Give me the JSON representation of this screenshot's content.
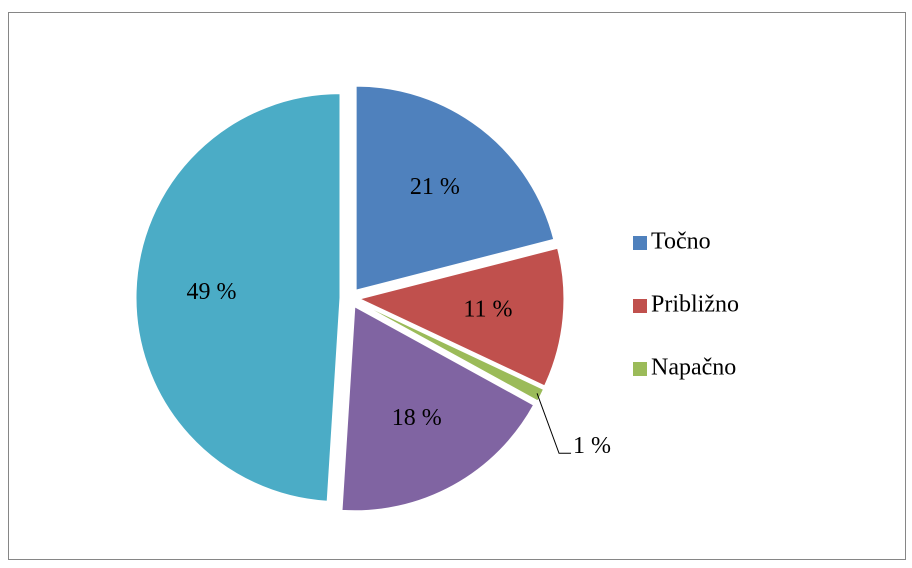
{
  "chart_data": {
    "type": "pie",
    "categories": [
      "Točno",
      "Približno",
      "Napačno",
      null,
      null
    ],
    "values": [
      21,
      11,
      1,
      18,
      49
    ],
    "value_labels": [
      "21 %",
      "11 %",
      "1 %",
      "18 %",
      "49 %"
    ],
    "colors": [
      "#4f81bd",
      "#c0504d",
      "#9bbb59",
      "#8064a2",
      "#4bacc6"
    ],
    "legend": "right"
  }
}
